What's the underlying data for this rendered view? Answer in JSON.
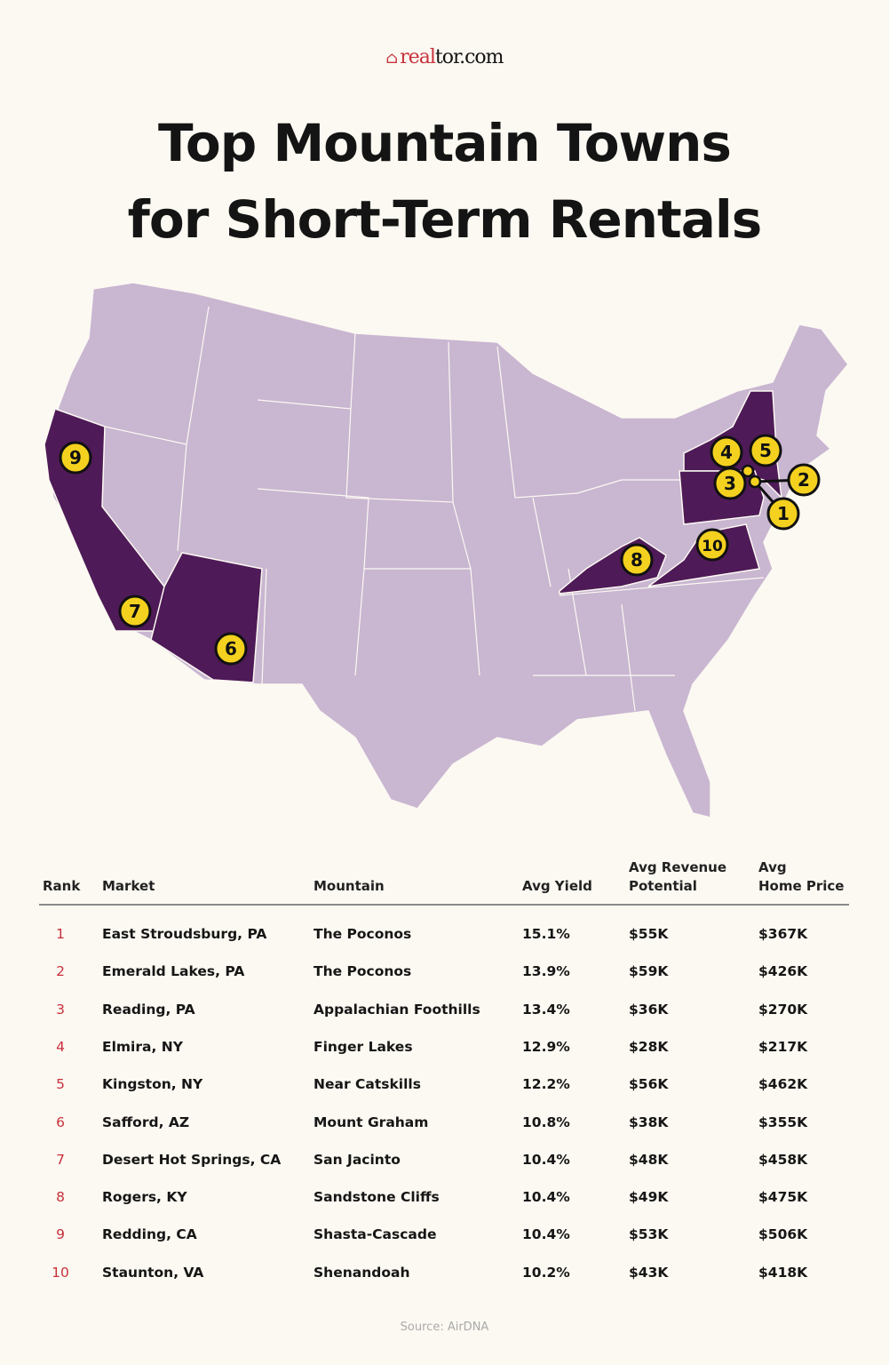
{
  "brand": {
    "logo_text": "realtor.com",
    "logo_part_red": "real",
    "logo_part_dark": "tor.com",
    "icon": "house-icon"
  },
  "title": {
    "line1": "Top Mountain Towns",
    "line2": "for Short-Term Rentals"
  },
  "colors": {
    "background": "#fcf9f2",
    "state_default": "#c9b6d1",
    "state_highlight": "#4e1a57",
    "marker": "#f4d11f",
    "rank_text": "#c8303b"
  },
  "map": {
    "highlighted_states": [
      "CA",
      "AZ",
      "NY",
      "PA",
      "KY",
      "VA"
    ],
    "markers": [
      {
        "label": "1",
        "state": "PA"
      },
      {
        "label": "2",
        "state": "PA"
      },
      {
        "label": "3",
        "state": "PA"
      },
      {
        "label": "4",
        "state": "NY"
      },
      {
        "label": "5",
        "state": "NY"
      },
      {
        "label": "6",
        "state": "AZ"
      },
      {
        "label": "7",
        "state": "CA"
      },
      {
        "label": "8",
        "state": "KY"
      },
      {
        "label": "9",
        "state": "CA"
      },
      {
        "label": "10",
        "state": "VA"
      }
    ]
  },
  "table": {
    "headers": [
      "Rank",
      "Market",
      "Mountain",
      "Avg Yield",
      "Avg Revenue Potential",
      "Avg Home Price"
    ],
    "header_lines": {
      "rev1": "Avg Revenue",
      "rev2": "Potential",
      "price1": "Avg",
      "price2": "Home Price"
    },
    "rows": [
      [
        "1",
        "East Stroudsburg, PA",
        "The Poconos",
        "15.1%",
        "$55K",
        "$367K"
      ],
      [
        "2",
        "Emerald Lakes, PA",
        "The Poconos",
        "13.9%",
        "$59K",
        "$426K"
      ],
      [
        "3",
        "Reading, PA",
        "Appalachian Foothills",
        "13.4%",
        "$36K",
        "$270K"
      ],
      [
        "4",
        "Elmira, NY",
        "Finger Lakes",
        "12.9%",
        "$28K",
        "$217K"
      ],
      [
        "5",
        "Kingston, NY",
        "Near Catskills",
        "12.2%",
        "$56K",
        "$462K"
      ],
      [
        "6",
        "Safford, AZ",
        "Mount Graham",
        "10.8%",
        "$38K",
        "$355K"
      ],
      [
        "7",
        "Desert Hot Springs, CA",
        "San Jacinto",
        "10.4%",
        "$48K",
        "$458K"
      ],
      [
        "8",
        "Rogers, KY",
        "Sandstone Cliffs",
        "10.4%",
        "$49K",
        "$475K"
      ],
      [
        "9",
        "Redding, CA",
        "Shasta-Cascade",
        "10.4%",
        "$53K",
        "$506K"
      ],
      [
        "10",
        "Staunton, VA",
        "Shenandoah",
        "10.2%",
        "$43K",
        "$418K"
      ]
    ]
  },
  "source": "Source: AirDNA"
}
